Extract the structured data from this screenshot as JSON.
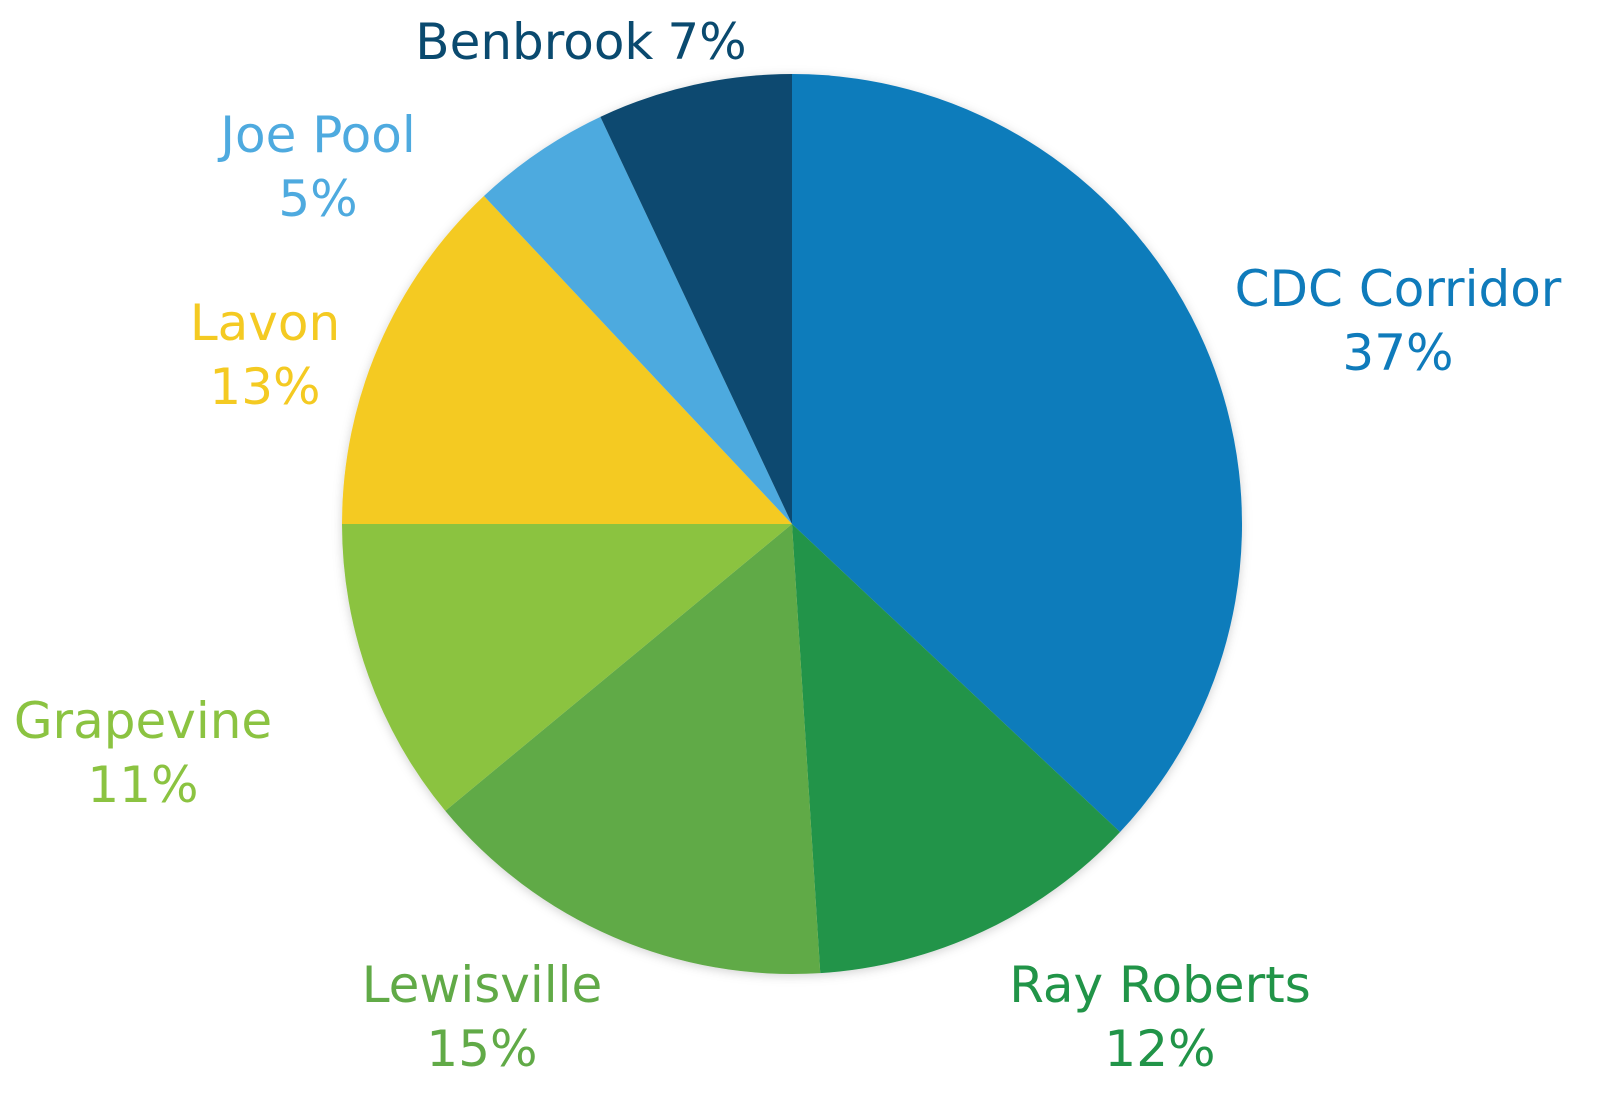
{
  "chart_data": {
    "type": "pie",
    "title": "",
    "start": "top",
    "direction": "clockwise",
    "slices": [
      {
        "label": "CDC Corridor",
        "percent_label": "37%",
        "value": 37,
        "color": "#0f7bbb",
        "label_layout": "two-line"
      },
      {
        "label": "Ray Roberts",
        "percent_label": "12%",
        "value": 12,
        "color": "#219448",
        "label_layout": "two-line"
      },
      {
        "label": "Lewisville",
        "percent_label": "15%",
        "value": 15,
        "color": "#61aa47",
        "label_layout": "two-line"
      },
      {
        "label": "Grapevine",
        "percent_label": "11%",
        "value": 11,
        "color": "#8bc341",
        "label_layout": "two-line"
      },
      {
        "label": "Lavon",
        "percent_label": "13%",
        "value": 13,
        "color": "#f4ca22",
        "label_layout": "two-line"
      },
      {
        "label": "Joe Pool",
        "percent_label": "5%",
        "value": 5,
        "color": "#4eaadf",
        "label_layout": "two-line"
      },
      {
        "label": "Benbrook",
        "percent_label": "7%",
        "value": 7,
        "color": "#0a4a6f",
        "label_layout": "one-line"
      }
    ]
  }
}
